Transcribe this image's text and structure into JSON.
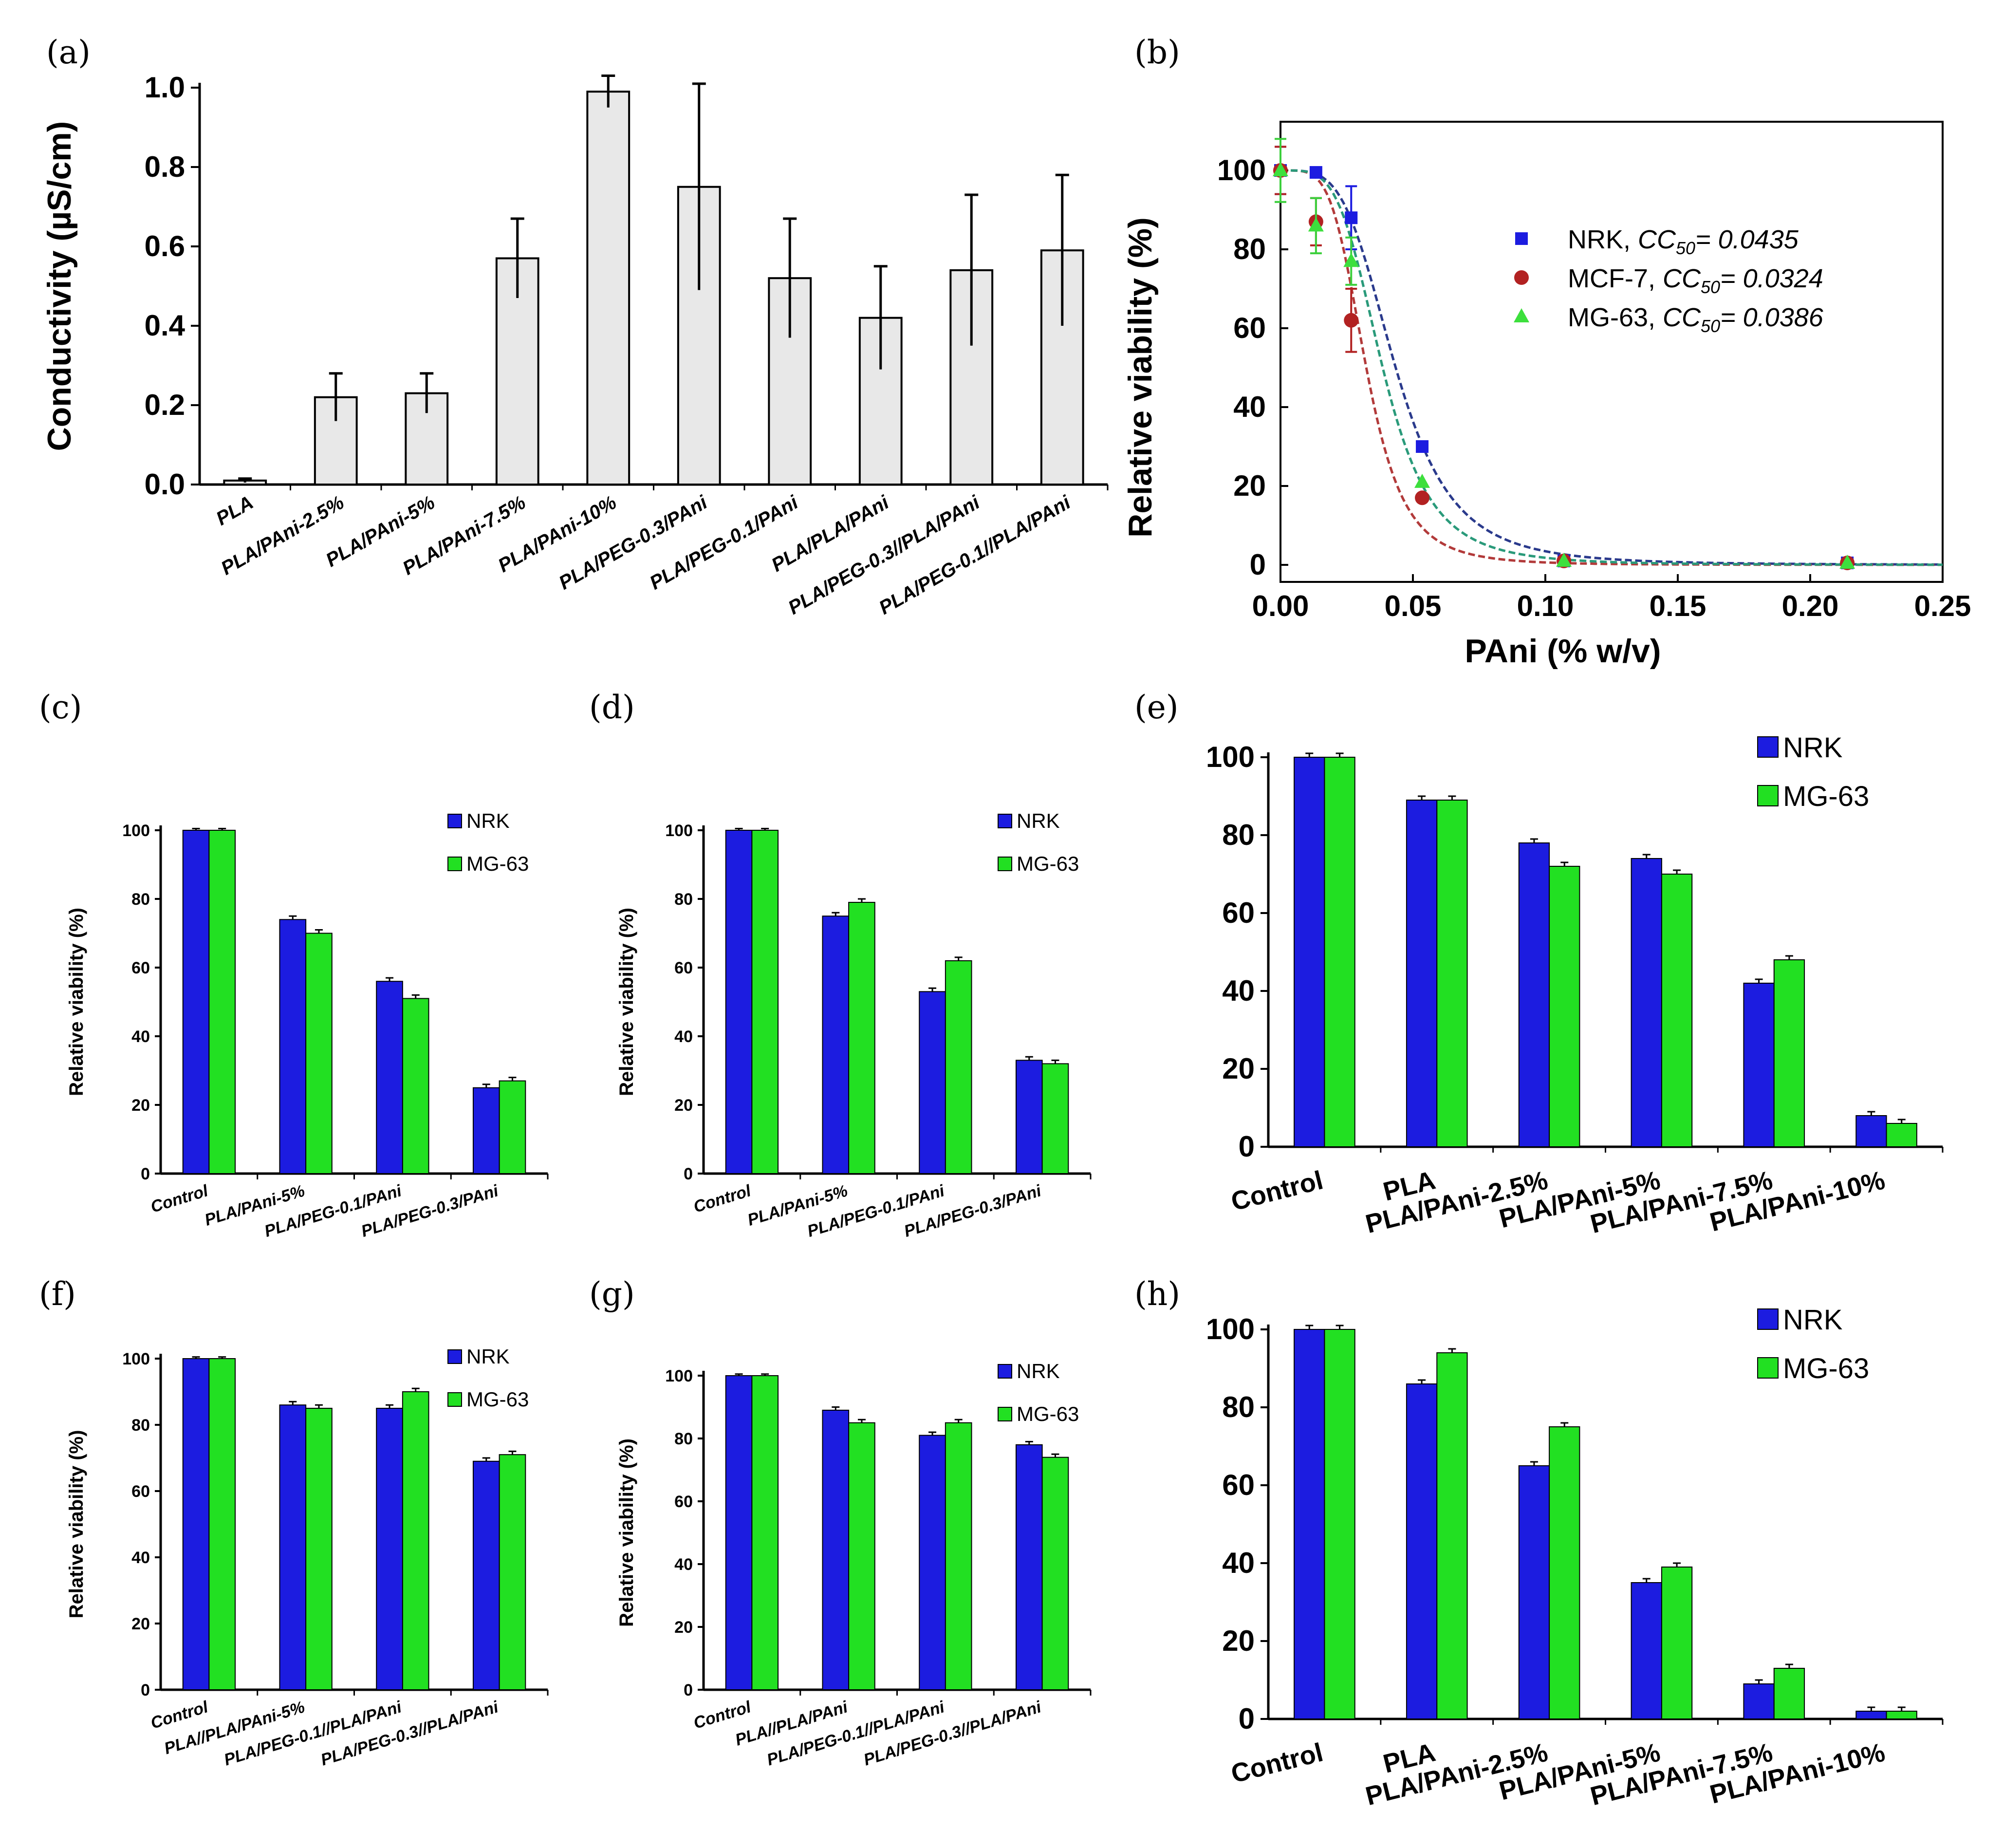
{
  "panels": {
    "a": "(a)",
    "b": "(b)",
    "c": "(c)",
    "d": "(d)",
    "e": "(e)",
    "f": "(f)",
    "g": "(g)",
    "h": "(h)"
  },
  "colors": {
    "nrk": "#1c1ce0",
    "mg63": "#22e022",
    "mcf7": "#b22222",
    "curve_nrk": "#2a3a8c",
    "curve_mcf7": "#b23a3a",
    "curve_mg63": "#2a9a7a",
    "bar_a_fill": "#e8e8e8"
  },
  "chart_data": [
    {
      "id": "a",
      "type": "bar",
      "ylabel": "Conductivity (µS/cm)",
      "ylim": [
        0,
        1.0
      ],
      "yticks": [
        "0.0",
        "0.2",
        "0.4",
        "0.6",
        "0.8",
        "1.0"
      ],
      "categories": [
        "PLA",
        "PLA/PAni-2.5%",
        "PLA/PAni-5%",
        "PLA/PAni-7.5%",
        "PLA/PAni-10%",
        "PLA/PEG-0.3/PAni",
        "PLA/PEG-0.1/PAni",
        "PLA/PLA/PAni",
        "PLA/PEG-0.3//PLA/PAni",
        "PLA/PEG-0.1//PLA/PAni"
      ],
      "values": [
        0.01,
        0.22,
        0.23,
        0.57,
        0.99,
        0.75,
        0.52,
        0.42,
        0.54,
        0.59
      ],
      "errors": [
        0.005,
        0.06,
        0.05,
        0.1,
        0.04,
        0.26,
        0.15,
        0.13,
        0.19,
        0.19
      ]
    },
    {
      "id": "b",
      "type": "scatter",
      "xlabel": "PAni (% w/v)",
      "ylabel": "Relative viability (%)",
      "xlim": [
        0,
        0.25
      ],
      "ylim": [
        0,
        100
      ],
      "xticks": [
        "0.00",
        "0.05",
        "0.10",
        "0.15",
        "0.20",
        "0.25"
      ],
      "yticks": [
        "0",
        "20",
        "40",
        "60",
        "80",
        "100"
      ],
      "series": [
        {
          "name": "NRK",
          "cc50_label": "CC",
          "cc50_sub": "50",
          "cc50_value": "= 0.0435",
          "cc50": 0.0435,
          "hill": 4.0,
          "points": [
            [
              0.0,
              100
            ],
            [
              0.0134,
              99.5
            ],
            [
              0.0267,
              88
            ],
            [
              0.0535,
              30
            ],
            [
              0.107,
              1
            ],
            [
              0.214,
              0.5
            ]
          ],
          "errors": [
            6,
            0,
            8,
            0,
            0,
            0
          ]
        },
        {
          "name": "MCF-7",
          "cc50_label": "CC",
          "cc50_sub": "50",
          "cc50_value": "= 0.0324",
          "cc50": 0.0324,
          "hill": 4.5,
          "points": [
            [
              0.0,
              100
            ],
            [
              0.0134,
              87
            ],
            [
              0.0267,
              62
            ],
            [
              0.0535,
              17
            ],
            [
              0.107,
              1
            ],
            [
              0.214,
              0.5
            ]
          ],
          "errors": [
            6,
            6,
            8,
            0,
            0,
            0
          ]
        },
        {
          "name": "MG-63",
          "cc50_label": "CC",
          "cc50_sub": "50",
          "cc50_value": "= 0.0386",
          "cc50": 0.0386,
          "hill": 4.2,
          "points": [
            [
              0.0,
              100
            ],
            [
              0.0134,
              86
            ],
            [
              0.0267,
              77
            ],
            [
              0.0535,
              21
            ],
            [
              0.107,
              1
            ],
            [
              0.214,
              0.5
            ]
          ],
          "errors": [
            8,
            7,
            6,
            0,
            0,
            0
          ]
        }
      ]
    },
    {
      "id": "c",
      "type": "bar",
      "ylabel": "Relative viability (%)",
      "ylim": [
        0,
        100
      ],
      "yticks": [
        "0",
        "20",
        "40",
        "60",
        "80",
        "100"
      ],
      "categories": [
        "Control",
        "PLA/PAni-5%",
        "PLA/PEG-0.1/PAni",
        "PLA/PEG-0.3/PAni"
      ],
      "series": [
        {
          "name": "NRK",
          "values": [
            100,
            74,
            56,
            25
          ],
          "errors": [
            0.5,
            1,
            1,
            1
          ]
        },
        {
          "name": "MG-63",
          "values": [
            100,
            70,
            51,
            27
          ],
          "errors": [
            0.5,
            1,
            1,
            1
          ]
        }
      ]
    },
    {
      "id": "d",
      "type": "bar",
      "ylabel": "Relative viability (%)",
      "ylim": [
        0,
        100
      ],
      "yticks": [
        "0",
        "20",
        "40",
        "60",
        "80",
        "100"
      ],
      "categories": [
        "Control",
        "PLA/PAni-5%",
        "PLA/PEG-0.1/PAni",
        "PLA/PEG-0.3/PAni"
      ],
      "series": [
        {
          "name": "NRK",
          "values": [
            100,
            75,
            53,
            33
          ],
          "errors": [
            0.5,
            1,
            1,
            1
          ]
        },
        {
          "name": "MG-63",
          "values": [
            100,
            79,
            62,
            32
          ],
          "errors": [
            0.5,
            1,
            1,
            1
          ]
        }
      ]
    },
    {
      "id": "e",
      "type": "bar",
      "ylim": [
        0,
        100
      ],
      "yticks": [
        "0",
        "20",
        "40",
        "60",
        "80",
        "100"
      ],
      "categories": [
        "Control",
        "PLA",
        "PLA/PAni-2.5%",
        "PLA/PAni-5%",
        "PLA/PAni-7.5%",
        "PLA/PAni-10%"
      ],
      "series": [
        {
          "name": "NRK",
          "values": [
            100,
            89,
            78,
            74,
            42,
            8
          ],
          "errors": [
            1,
            1,
            1,
            1,
            1,
            1
          ]
        },
        {
          "name": "MG-63",
          "values": [
            100,
            89,
            72,
            70,
            48,
            6
          ],
          "errors": [
            1,
            1,
            1,
            1,
            1,
            1
          ]
        }
      ]
    },
    {
      "id": "f",
      "type": "bar",
      "ylabel": "Relative viability (%)",
      "ylim": [
        0,
        100
      ],
      "yticks": [
        "0",
        "20",
        "40",
        "60",
        "80",
        "100"
      ],
      "categories": [
        "Control",
        "PLA//PLA/PAni-5%",
        "PLA/PEG-0.1//PLA/PAni",
        "PLA/PEG-0.3//PLA/PAni"
      ],
      "series": [
        {
          "name": "NRK",
          "values": [
            100,
            86,
            85,
            69
          ],
          "errors": [
            0.5,
            1,
            1,
            1
          ]
        },
        {
          "name": "MG-63",
          "values": [
            100,
            85,
            90,
            71
          ],
          "errors": [
            0.5,
            1,
            1,
            1
          ]
        }
      ]
    },
    {
      "id": "g",
      "type": "bar",
      "ylabel": "Relative viability (%)",
      "ylim": [
        0,
        100
      ],
      "yticks": [
        "0",
        "20",
        "40",
        "60",
        "80",
        "100"
      ],
      "categories": [
        "Control",
        "PLA//PLA/PAni",
        "PLA/PEG-0.1//PLA/PAni",
        "PLA/PEG-0.3//PLA/PAni"
      ],
      "series": [
        {
          "name": "NRK",
          "values": [
            100,
            89,
            81,
            78
          ],
          "errors": [
            0.5,
            1,
            1,
            1
          ]
        },
        {
          "name": "MG-63",
          "values": [
            100,
            85,
            85,
            74
          ],
          "errors": [
            0.5,
            1,
            1,
            1
          ]
        }
      ]
    },
    {
      "id": "h",
      "type": "bar",
      "ylim": [
        0,
        100
      ],
      "yticks": [
        "0",
        "20",
        "40",
        "60",
        "80",
        "100"
      ],
      "categories": [
        "Control",
        "PLA",
        "PLA/PAni-2.5%",
        "PLA/PAni-5%",
        "PLA/PAni-7.5%",
        "PLA/PAni-10%"
      ],
      "series": [
        {
          "name": "NRK",
          "values": [
            100,
            86,
            65,
            35,
            9,
            2
          ],
          "errors": [
            1,
            1,
            1,
            1,
            1,
            1
          ]
        },
        {
          "name": "MG-63",
          "values": [
            100,
            94,
            75,
            39,
            13,
            2
          ],
          "errors": [
            1,
            1,
            1,
            1,
            1,
            1
          ]
        }
      ]
    }
  ]
}
